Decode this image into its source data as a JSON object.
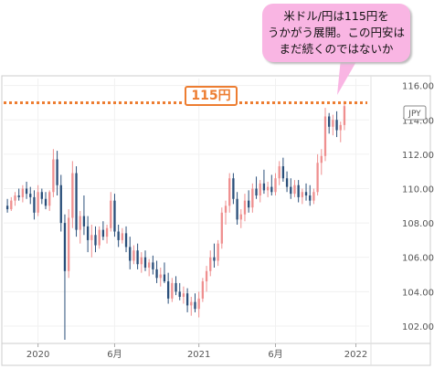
{
  "callout": {
    "lines": [
      "米ドル/円は115円を",
      "うかがう展開。この円安は",
      "まだ続くのではないか"
    ]
  },
  "price_label": "115円",
  "colors": {
    "up": "#ef8f8f",
    "down": "#2a4f7a",
    "level_line": "#ed7d31",
    "callout_bg": "#f9b5e3"
  },
  "chart_data": {
    "type": "candlestick",
    "currency_label": "JPY",
    "y_ticks": [
      "116.00",
      "114.00",
      "112.00",
      "110.00",
      "108.00",
      "106.00",
      "104.00",
      "102.00"
    ],
    "ylim": [
      101.2,
      116.3
    ],
    "x_ticks": [
      {
        "label": "2020",
        "idx": 8
      },
      {
        "label": "6月",
        "idx": 28
      },
      {
        "label": "2021",
        "idx": 50
      },
      {
        "label": "6月",
        "idx": 70
      },
      {
        "label": "2022",
        "idx": 91
      }
    ],
    "x_count": 94,
    "reference_line": 115,
    "candles": [
      [
        109.0,
        109.4,
        108.6,
        108.8
      ],
      [
        108.8,
        109.5,
        108.7,
        109.3
      ],
      [
        109.3,
        109.8,
        109.0,
        109.6
      ],
      [
        109.6,
        110.0,
        109.3,
        109.5
      ],
      [
        109.5,
        110.2,
        109.2,
        110.0
      ],
      [
        110.0,
        110.4,
        109.4,
        109.7
      ],
      [
        109.7,
        110.1,
        109.1,
        109.5
      ],
      [
        109.5,
        109.9,
        108.2,
        108.6
      ],
      [
        108.6,
        110.2,
        108.4,
        109.8
      ],
      [
        109.8,
        110.0,
        109.1,
        109.4
      ],
      [
        109.4,
        109.8,
        108.8,
        109.0
      ],
      [
        109.0,
        109.9,
        108.7,
        109.8
      ],
      [
        109.8,
        112.3,
        109.5,
        111.7
      ],
      [
        111.7,
        112.2,
        109.6,
        110.2
      ],
      [
        110.2,
        110.8,
        107.5,
        108.0
      ],
      [
        108.0,
        108.5,
        101.2,
        105.2
      ],
      [
        105.2,
        108.8,
        104.8,
        108.3
      ],
      [
        108.3,
        111.6,
        107.7,
        110.9
      ],
      [
        110.9,
        111.3,
        107.2,
        107.6
      ],
      [
        107.6,
        108.7,
        106.8,
        108.4
      ],
      [
        108.4,
        109.6,
        107.3,
        107.8
      ],
      [
        107.8,
        108.4,
        106.3,
        107.0
      ],
      [
        107.0,
        107.9,
        106.0,
        107.3
      ],
      [
        107.3,
        107.8,
        106.3,
        106.7
      ],
      [
        106.7,
        107.8,
        106.5,
        107.6
      ],
      [
        107.6,
        108.1,
        107.0,
        107.2
      ],
      [
        107.2,
        107.9,
        106.8,
        107.7
      ],
      [
        107.7,
        109.8,
        107.5,
        109.3
      ],
      [
        109.3,
        109.7,
        107.2,
        107.5
      ],
      [
        107.5,
        107.9,
        106.6,
        107.0
      ],
      [
        107.0,
        107.7,
        106.8,
        107.4
      ],
      [
        107.4,
        107.8,
        106.3,
        106.6
      ],
      [
        106.6,
        107.2,
        105.3,
        105.8
      ],
      [
        105.8,
        106.7,
        105.6,
        106.4
      ],
      [
        106.4,
        106.8,
        105.3,
        105.6
      ],
      [
        105.6,
        106.3,
        105.1,
        106.0
      ],
      [
        106.0,
        106.4,
        105.2,
        105.4
      ],
      [
        105.4,
        105.9,
        104.9,
        105.7
      ],
      [
        105.7,
        106.1,
        105.0,
        105.3
      ],
      [
        105.3,
        105.8,
        104.5,
        104.8
      ],
      [
        104.8,
        105.4,
        104.3,
        105.0
      ],
      [
        105.0,
        105.7,
        104.5,
        104.6
      ],
      [
        104.6,
        105.1,
        103.3,
        103.6
      ],
      [
        103.6,
        104.8,
        103.4,
        104.5
      ],
      [
        104.5,
        104.9,
        103.8,
        104.0
      ],
      [
        104.0,
        104.5,
        103.5,
        103.7
      ],
      [
        103.7,
        104.3,
        103.3,
        103.9
      ],
      [
        103.9,
        104.2,
        102.8,
        103.2
      ],
      [
        103.2,
        103.7,
        102.6,
        103.4
      ],
      [
        103.4,
        103.9,
        102.8,
        103.0
      ],
      [
        103.0,
        104.0,
        102.5,
        103.6
      ],
      [
        103.6,
        104.8,
        103.4,
        104.6
      ],
      [
        104.6,
        105.5,
        104.0,
        105.2
      ],
      [
        105.2,
        106.4,
        104.9,
        106.0
      ],
      [
        106.0,
        106.8,
        105.4,
        105.8
      ],
      [
        105.8,
        107.0,
        105.5,
        106.8
      ],
      [
        106.8,
        108.9,
        106.5,
        108.6
      ],
      [
        108.6,
        109.3,
        107.9,
        109.0
      ],
      [
        109.0,
        110.9,
        108.6,
        110.6
      ],
      [
        110.6,
        110.9,
        109.1,
        109.4
      ],
      [
        109.4,
        109.8,
        107.9,
        108.2
      ],
      [
        108.2,
        108.8,
        107.7,
        108.5
      ],
      [
        108.5,
        109.7,
        108.1,
        109.3
      ],
      [
        109.3,
        109.9,
        108.6,
        108.9
      ],
      [
        108.9,
        110.3,
        108.6,
        110.0
      ],
      [
        110.0,
        110.7,
        109.4,
        109.6
      ],
      [
        109.6,
        110.5,
        109.2,
        110.3
      ],
      [
        110.3,
        111.1,
        109.7,
        109.9
      ],
      [
        109.9,
        110.4,
        109.5,
        110.1
      ],
      [
        110.1,
        110.8,
        109.6,
        109.8
      ],
      [
        109.8,
        110.9,
        109.6,
        110.6
      ],
      [
        110.6,
        111.6,
        110.2,
        111.3
      ],
      [
        111.3,
        111.8,
        110.4,
        110.6
      ],
      [
        110.6,
        111.0,
        109.8,
        110.1
      ],
      [
        110.1,
        110.6,
        109.4,
        109.7
      ],
      [
        109.7,
        110.5,
        109.5,
        110.2
      ],
      [
        110.2,
        110.5,
        109.2,
        109.5
      ],
      [
        109.5,
        110.0,
        109.1,
        109.8
      ],
      [
        109.8,
        110.3,
        109.3,
        109.6
      ],
      [
        109.6,
        110.2,
        109.0,
        109.3
      ],
      [
        109.3,
        110.0,
        109.1,
        109.8
      ],
      [
        109.8,
        112.0,
        109.6,
        111.5
      ],
      [
        111.5,
        112.3,
        110.8,
        111.9
      ],
      [
        111.9,
        114.7,
        111.6,
        114.2
      ],
      [
        114.2,
        114.4,
        113.2,
        113.6
      ],
      [
        113.6,
        114.3,
        113.1,
        114.0
      ],
      [
        114.0,
        114.5,
        113.0,
        113.4
      ],
      [
        113.4,
        113.9,
        112.7,
        113.7
      ],
      [
        113.7,
        115.1,
        113.4,
        114.8
      ]
    ]
  }
}
